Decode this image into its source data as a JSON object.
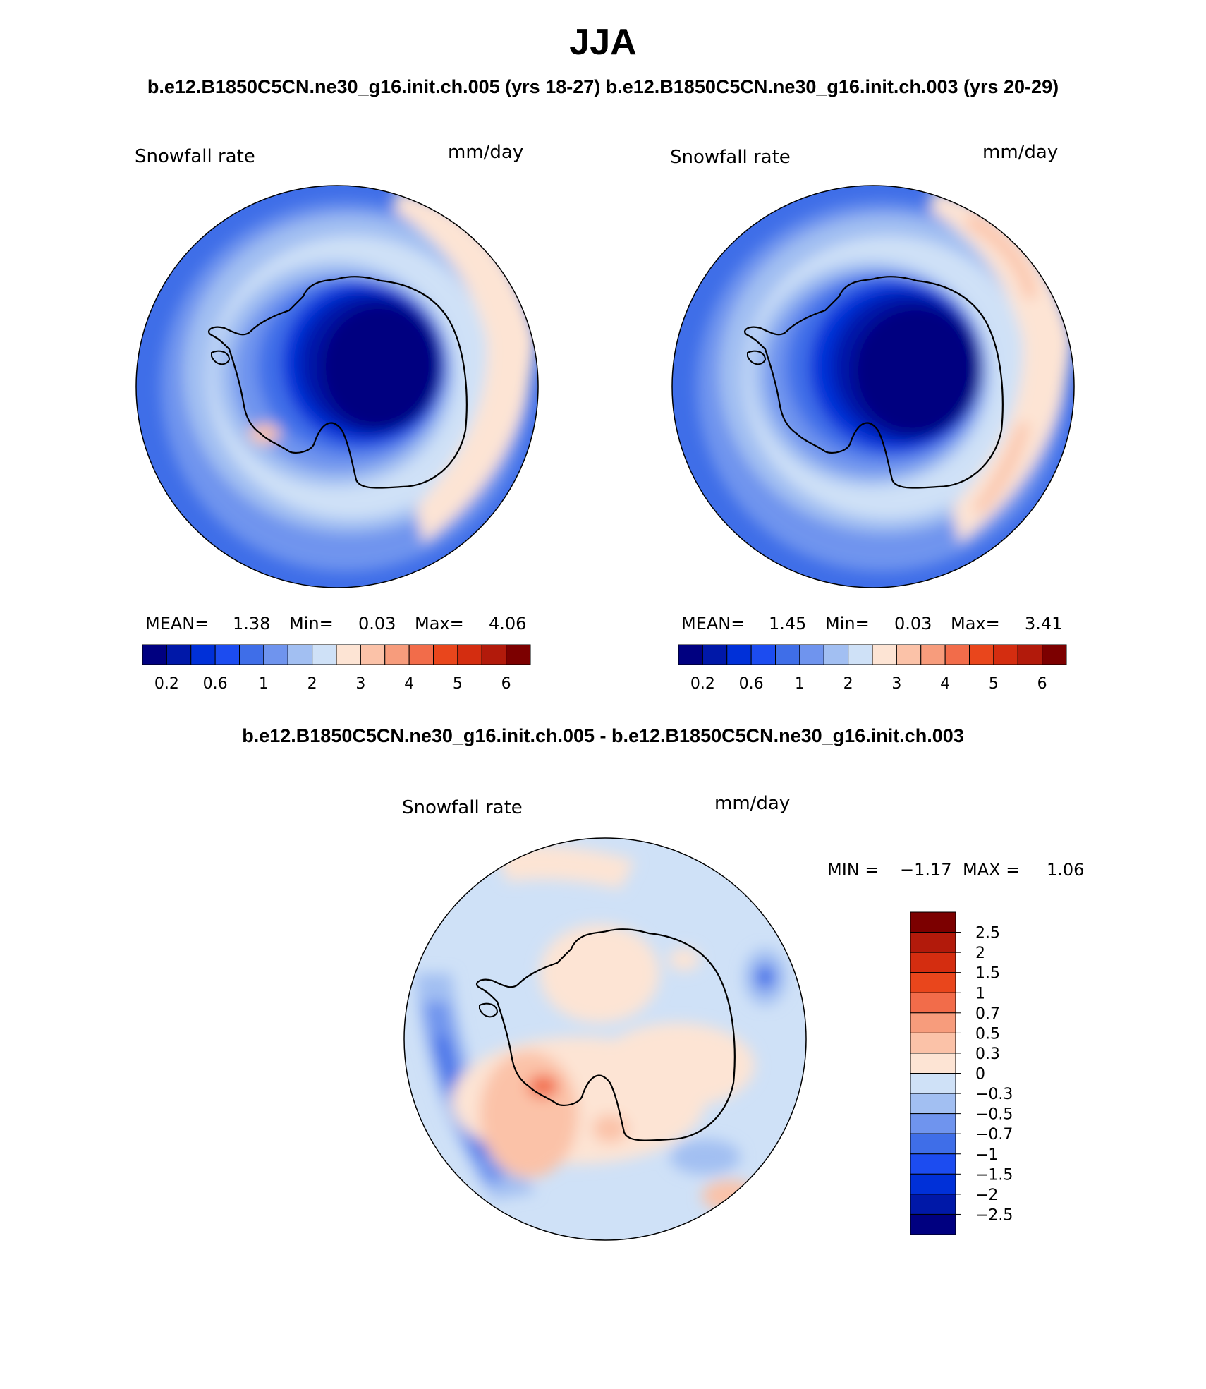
{
  "title": "JJA",
  "subtitle": "b.e12.B1850C5CN.ne30_g16.init.ch.005 (yrs 18-27) b.e12.B1850C5CN.ne30_g16.init.ch.003 (yrs 20-29)",
  "diff_title": "b.e12.B1850C5CN.ne30_g16.init.ch.005 - b.e12.B1850C5CN.ne30_g16.init.ch.003",
  "palette": {
    "abs": [
      "#000080",
      "#0018a8",
      "#0030d8",
      "#1c4cf0",
      "#3f6ee8",
      "#6f94ee",
      "#a2bff2",
      "#cfe1f7",
      "#fde4d4",
      "#fbc2a8",
      "#f79c7c",
      "#f26c4a",
      "#e9461c",
      "#d42d10",
      "#b21a0b",
      "#7c0000"
    ],
    "diff": [
      "#000080",
      "#0018a8",
      "#0030d8",
      "#1c4cf0",
      "#3f6ee8",
      "#6f94ee",
      "#a2bff2",
      "#cfe1f7",
      "#fde4d4",
      "#fbc2a8",
      "#f79c7c",
      "#f26c4a",
      "#e9461c",
      "#d42d10",
      "#b21a0b",
      "#7c0000"
    ]
  },
  "panels": [
    {
      "variable": "Snowfall rate",
      "units": "mm/day",
      "mean_label": "MEAN=",
      "mean_value": "1.38",
      "min_label": "Min=",
      "min_value": "0.03",
      "max_label": "Max=",
      "max_value": "4.06",
      "colorbar_ticks": [
        "0.2",
        "0.6",
        "1",
        "2",
        "3",
        "4",
        "5",
        "6"
      ]
    },
    {
      "variable": "Snowfall rate",
      "units": "mm/day",
      "mean_label": "MEAN=",
      "mean_value": "1.45",
      "min_label": "Min=",
      "min_value": "0.03",
      "max_label": "Max=",
      "max_value": "3.41",
      "colorbar_ticks": [
        "0.2",
        "0.6",
        "1",
        "2",
        "3",
        "4",
        "5",
        "6"
      ]
    }
  ],
  "diff_panel": {
    "variable": "Snowfall rate",
    "units": "mm/day",
    "min_label": "MIN =",
    "min_value": "−1.17",
    "max_label": "MAX =",
    "max_value": "1.06",
    "colorbar_ticks": [
      "2.5",
      "2",
      "1.5",
      "1",
      "0.7",
      "0.5",
      "0.3",
      "0",
      "−0.3",
      "−0.5",
      "−0.7",
      "−1",
      "−1.5",
      "−2",
      "−2.5"
    ]
  }
}
